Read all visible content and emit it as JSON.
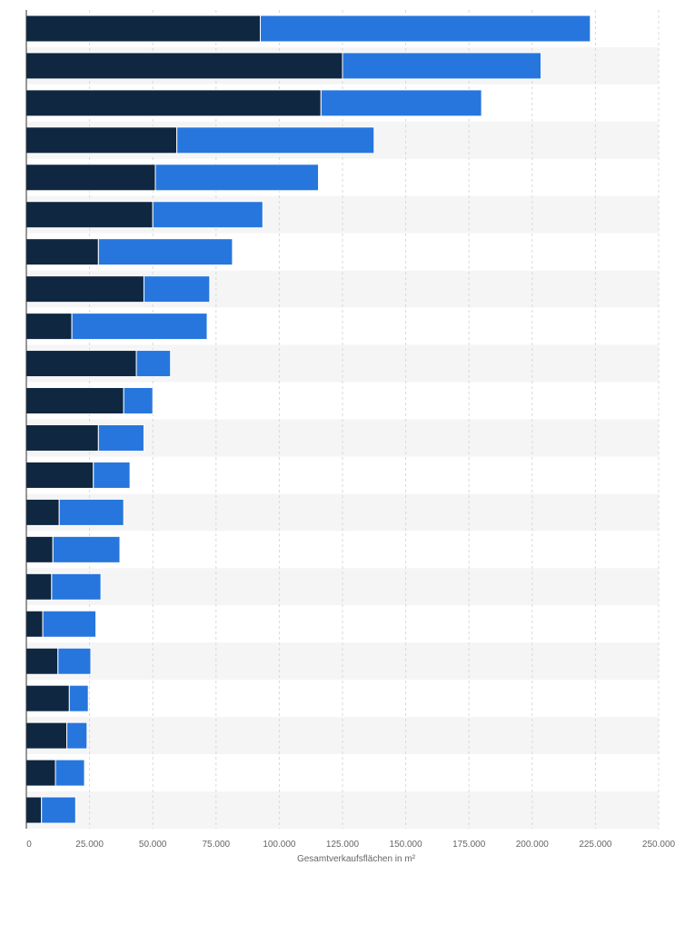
{
  "chart_data": {
    "type": "bar",
    "orientation": "horizontal",
    "stacked": true,
    "title": "",
    "xlabel": "Gesamtverkaufsflächen in m²",
    "ylabel": "",
    "xlim": [
      0,
      250000
    ],
    "x_ticks": [
      0,
      25000,
      50000,
      75000,
      100000,
      125000,
      150000,
      175000,
      200000,
      225000,
      250000
    ],
    "x_tick_labels": [
      "0",
      "25.000",
      "50.000",
      "75.000",
      "100.000",
      "125.000",
      "150.000",
      "175.000",
      "200.000",
      "225.000",
      "250.000"
    ],
    "grid": "vertical dashed",
    "legend": "none",
    "categories": [
      "",
      "",
      "",
      "",
      "",
      "",
      "",
      "",
      "",
      "",
      "",
      "",
      "",
      "",
      "",
      "",
      "",
      "",
      "",
      "",
      "",
      ""
    ],
    "series": [
      {
        "color": "#0f2741",
        "values": [
          92500,
          125000,
          116500,
          59500,
          51000,
          50000,
          28500,
          46500,
          18000,
          43500,
          38500,
          28500,
          26500,
          13000,
          10500,
          10000,
          6500,
          12500,
          17000,
          16000,
          11500,
          6000
        ]
      },
      {
        "color": "#2776dd",
        "values": [
          130500,
          78500,
          63500,
          78000,
          64500,
          43500,
          53000,
          26000,
          53500,
          13500,
          11500,
          18000,
          14500,
          25500,
          26500,
          19500,
          21000,
          13000,
          7500,
          8000,
          11500,
          13500
        ]
      }
    ]
  }
}
